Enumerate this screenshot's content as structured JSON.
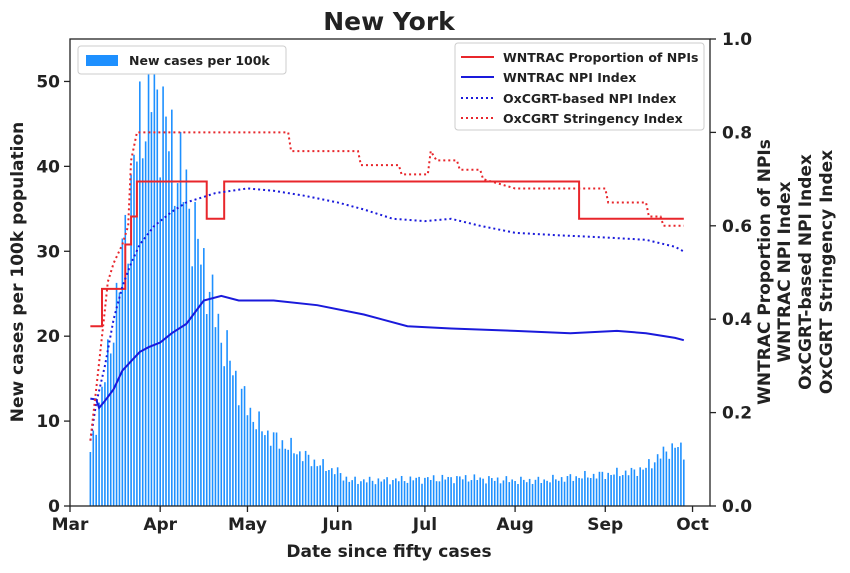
{
  "chart_data": {
    "type": "bar",
    "title": "New York",
    "xlabel": "Date since fifty cases",
    "ylabel_left": "New cases per 100k population",
    "ylabels_right": [
      "WNTRAC Proportion of NPIs",
      "WNTRAC NPI Index",
      "OxCGRT-based NPI Index",
      "OxCGRT Stringency Index"
    ],
    "x_start": "2020-03-01",
    "x_end": "2020-10-07",
    "x_ticks": [
      {
        "label": "Mar",
        "date": "2020-03-01"
      },
      {
        "label": "Apr",
        "date": "2020-04-01"
      },
      {
        "label": "May",
        "date": "2020-05-01"
      },
      {
        "label": "Jun",
        "date": "2020-06-01"
      },
      {
        "label": "Jul",
        "date": "2020-07-01"
      },
      {
        "label": "Aug",
        "date": "2020-08-01"
      },
      {
        "label": "Sep",
        "date": "2020-09-01"
      },
      {
        "label": "Oct",
        "date": "2020-10-01"
      }
    ],
    "ylim_left": [
      0,
      55
    ],
    "yticks_left": [
      "0",
      "10",
      "20",
      "30",
      "40",
      "50"
    ],
    "ylim_right": [
      0,
      1
    ],
    "yticks_right": [
      "0.0",
      "0.2",
      "0.4",
      "0.6",
      "0.8",
      "1.0"
    ],
    "bar_series": {
      "name": "New cases per 100k",
      "color": "#1e90ff",
      "start_date": "2020-03-08",
      "anchors": [
        [
          "2020-03-08",
          6
        ],
        [
          "2020-03-11",
          12
        ],
        [
          "2020-03-14",
          17
        ],
        [
          "2020-03-17",
          24
        ],
        [
          "2020-03-20",
          32
        ],
        [
          "2020-03-23",
          40
        ],
        [
          "2020-03-26",
          46
        ],
        [
          "2020-03-29",
          49
        ],
        [
          "2020-04-01",
          47
        ],
        [
          "2020-04-04",
          43
        ],
        [
          "2020-04-07",
          40
        ],
        [
          "2020-04-10",
          37
        ],
        [
          "2020-04-13",
          32
        ],
        [
          "2020-04-16",
          28
        ],
        [
          "2020-04-19",
          24
        ],
        [
          "2020-04-22",
          20
        ],
        [
          "2020-04-25",
          17
        ],
        [
          "2020-04-28",
          14
        ],
        [
          "2020-05-02",
          11
        ],
        [
          "2020-05-06",
          9
        ],
        [
          "2020-05-10",
          8
        ],
        [
          "2020-05-15",
          7
        ],
        [
          "2020-05-20",
          6
        ],
        [
          "2020-05-25",
          5
        ],
        [
          "2020-06-01",
          4
        ],
        [
          "2020-06-05",
          3
        ],
        [
          "2020-06-15",
          3
        ],
        [
          "2020-07-01",
          3.2
        ],
        [
          "2020-07-15",
          3.3
        ],
        [
          "2020-08-01",
          3
        ],
        [
          "2020-08-10",
          3
        ],
        [
          "2020-08-25",
          3.5
        ],
        [
          "2020-09-10",
          4
        ],
        [
          "2020-09-15",
          4.5
        ],
        [
          "2020-09-20",
          6
        ],
        [
          "2020-09-25",
          7
        ],
        [
          "2020-09-28",
          6.5
        ]
      ],
      "end_date": "2020-09-28"
    },
    "line_series": [
      {
        "name": "WNTRAC Proportion of NPIs",
        "color": "#e8262b",
        "dash": "solid",
        "step": true,
        "points": [
          [
            "2020-03-08",
            0.385
          ],
          [
            "2020-03-12",
            0.385
          ],
          [
            "2020-03-12",
            0.465
          ],
          [
            "2020-03-20",
            0.465
          ],
          [
            "2020-03-20",
            0.56
          ],
          [
            "2020-03-22",
            0.56
          ],
          [
            "2020-03-22",
            0.62
          ],
          [
            "2020-03-24",
            0.62
          ],
          [
            "2020-03-24",
            0.695
          ],
          [
            "2020-04-17",
            0.695
          ],
          [
            "2020-04-17",
            0.615
          ],
          [
            "2020-04-23",
            0.615
          ],
          [
            "2020-04-23",
            0.695
          ],
          [
            "2020-08-23",
            0.695
          ],
          [
            "2020-08-23",
            0.615
          ],
          [
            "2020-09-28",
            0.615
          ]
        ]
      },
      {
        "name": "WNTRAC NPI Index",
        "color": "#1a1adb",
        "dash": "solid",
        "step": false,
        "points": [
          [
            "2020-03-08",
            0.23
          ],
          [
            "2020-03-10",
            0.228
          ],
          [
            "2020-03-11",
            0.21
          ],
          [
            "2020-03-13",
            0.225
          ],
          [
            "2020-03-16",
            0.25
          ],
          [
            "2020-03-19",
            0.29
          ],
          [
            "2020-03-22",
            0.31
          ],
          [
            "2020-03-25",
            0.33
          ],
          [
            "2020-03-28",
            0.34
          ],
          [
            "2020-04-01",
            0.35
          ],
          [
            "2020-04-05",
            0.37
          ],
          [
            "2020-04-10",
            0.39
          ],
          [
            "2020-04-16",
            0.44
          ],
          [
            "2020-04-22",
            0.45
          ],
          [
            "2020-04-28",
            0.44
          ],
          [
            "2020-05-10",
            0.44
          ],
          [
            "2020-05-25",
            0.43
          ],
          [
            "2020-06-10",
            0.41
          ],
          [
            "2020-06-25",
            0.385
          ],
          [
            "2020-07-10",
            0.38
          ],
          [
            "2020-08-01",
            0.375
          ],
          [
            "2020-08-20",
            0.37
          ],
          [
            "2020-09-05",
            0.375
          ],
          [
            "2020-09-15",
            0.37
          ],
          [
            "2020-09-25",
            0.36
          ],
          [
            "2020-09-28",
            0.355
          ]
        ]
      },
      {
        "name": "OxCGRT-based NPI Index",
        "color": "#1a1adb",
        "dash": "dotted",
        "step": false,
        "points": [
          [
            "2020-03-08",
            0.14
          ],
          [
            "2020-03-10",
            0.22
          ],
          [
            "2020-03-13",
            0.3
          ],
          [
            "2020-03-16",
            0.4
          ],
          [
            "2020-03-19",
            0.47
          ],
          [
            "2020-03-22",
            0.52
          ],
          [
            "2020-03-25",
            0.56
          ],
          [
            "2020-03-30",
            0.6
          ],
          [
            "2020-04-05",
            0.63
          ],
          [
            "2020-04-10",
            0.65
          ],
          [
            "2020-04-20",
            0.67
          ],
          [
            "2020-05-01",
            0.68
          ],
          [
            "2020-05-10",
            0.675
          ],
          [
            "2020-05-20",
            0.665
          ],
          [
            "2020-06-01",
            0.65
          ],
          [
            "2020-06-10",
            0.635
          ],
          [
            "2020-06-20",
            0.615
          ],
          [
            "2020-07-01",
            0.61
          ],
          [
            "2020-07-10",
            0.615
          ],
          [
            "2020-07-20",
            0.6
          ],
          [
            "2020-08-01",
            0.585
          ],
          [
            "2020-08-15",
            0.58
          ],
          [
            "2020-09-01",
            0.575
          ],
          [
            "2020-09-15",
            0.57
          ],
          [
            "2020-09-25",
            0.555
          ],
          [
            "2020-09-28",
            0.545
          ]
        ]
      },
      {
        "name": "OxCGRT Stringency Index",
        "color": "#e8262b",
        "dash": "dotted",
        "step": true,
        "points": [
          [
            "2020-03-08",
            0.14
          ],
          [
            "2020-03-10",
            0.25
          ],
          [
            "2020-03-13",
            0.42
          ],
          [
            "2020-03-14",
            0.48
          ],
          [
            "2020-03-16",
            0.52
          ],
          [
            "2020-03-19",
            0.56
          ],
          [
            "2020-03-21",
            0.6
          ],
          [
            "2020-03-22",
            0.74
          ],
          [
            "2020-03-24",
            0.8
          ],
          [
            "2020-05-15",
            0.8
          ],
          [
            "2020-05-16",
            0.76
          ],
          [
            "2020-06-08",
            0.76
          ],
          [
            "2020-06-09",
            0.73
          ],
          [
            "2020-06-22",
            0.73
          ],
          [
            "2020-06-23",
            0.71
          ],
          [
            "2020-07-02",
            0.71
          ],
          [
            "2020-07-03",
            0.76
          ],
          [
            "2020-07-05",
            0.74
          ],
          [
            "2020-07-12",
            0.74
          ],
          [
            "2020-07-13",
            0.72
          ],
          [
            "2020-07-20",
            0.72
          ],
          [
            "2020-07-21",
            0.7
          ],
          [
            "2020-08-01",
            0.68
          ],
          [
            "2020-09-01",
            0.68
          ],
          [
            "2020-09-02",
            0.65
          ],
          [
            "2020-09-15",
            0.65
          ],
          [
            "2020-09-16",
            0.62
          ],
          [
            "2020-09-20",
            0.62
          ],
          [
            "2020-09-21",
            0.6
          ],
          [
            "2020-09-28",
            0.6
          ]
        ]
      }
    ],
    "legend_left": {
      "position": "top-left",
      "entries": [
        "New cases per 100k"
      ]
    },
    "legend_right": {
      "position": "top-right",
      "entries": [
        "WNTRAC Proportion of NPIs",
        "WNTRAC NPI Index",
        "OxCGRT-based NPI Index",
        "OxCGRT Stringency Index"
      ]
    }
  }
}
